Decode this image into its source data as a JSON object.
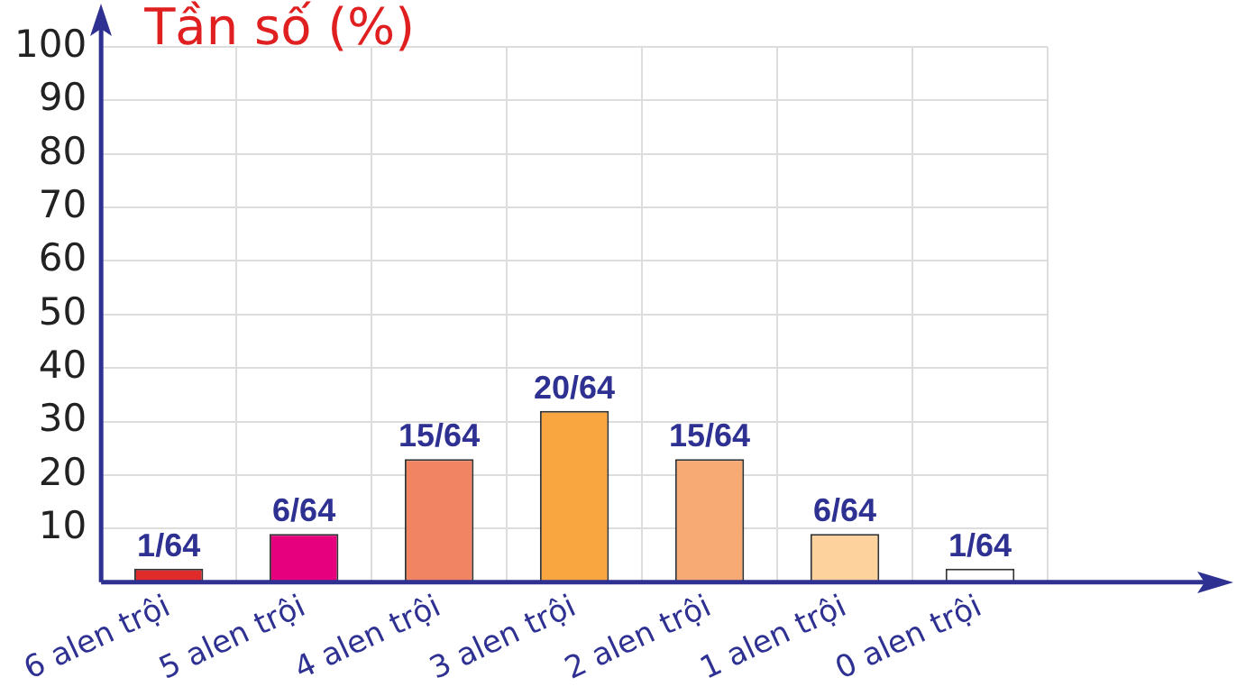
{
  "chart_data": {
    "type": "bar",
    "ylabel": "Tần số (%)",
    "categories": [
      "6 alen trội",
      "5 alen trội",
      "4 alen trội",
      "3 alen trội",
      "2 alen trội",
      "1 alen trội",
      "0 alen trội"
    ],
    "values": [
      2.5,
      9,
      23,
      32,
      23,
      9,
      2.5
    ],
    "value_labels": [
      "1/64",
      "6/64",
      "15/64",
      "20/64",
      "15/64",
      "6/64",
      "1/64"
    ],
    "colors": [
      "#e02b2b",
      "#e6007e",
      "#f08463",
      "#f9a640",
      "#f8aa74",
      "#fdd29d",
      "#ffffff"
    ],
    "ylim": [
      0,
      100
    ],
    "yticks": [
      10,
      20,
      30,
      40,
      50,
      60,
      70,
      80,
      90,
      100
    ],
    "grid": true,
    "legend": false
  }
}
